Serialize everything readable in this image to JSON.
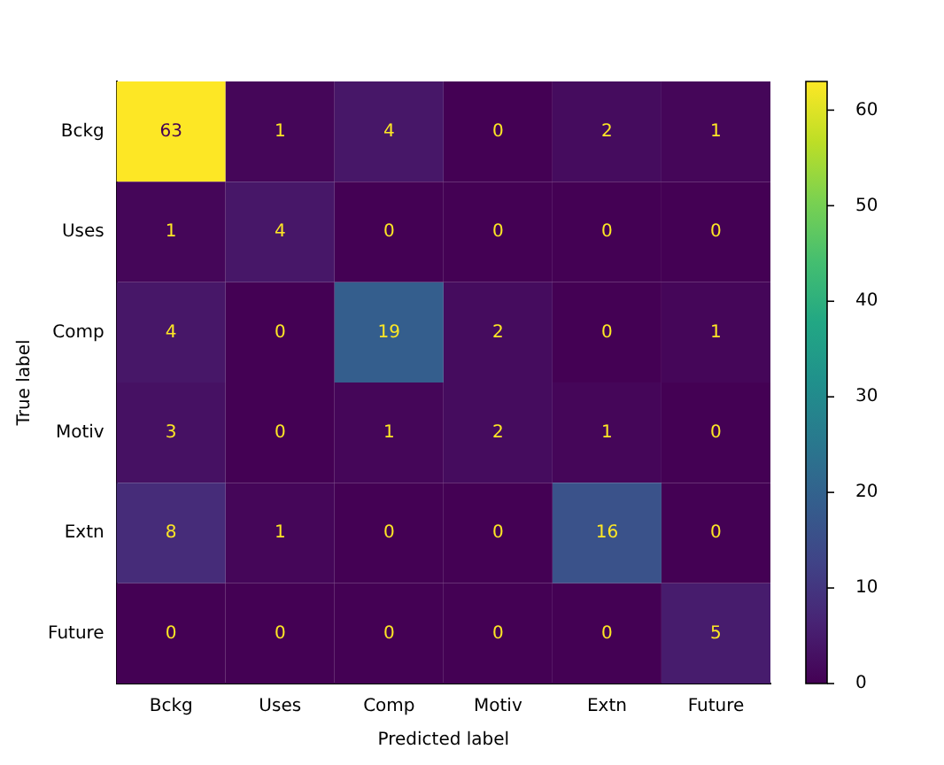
{
  "chart_data": {
    "type": "heatmap",
    "xlabel": "Predicted label",
    "ylabel": "True label",
    "categories": [
      "Bckg",
      "Uses",
      "Comp",
      "Motiv",
      "Extn",
      "Future"
    ],
    "y_categories": [
      "Bckg",
      "Uses",
      "Comp",
      "Motiv",
      "Extn",
      "Future"
    ],
    "cells": [
      [
        63,
        1,
        4,
        0,
        2,
        1
      ],
      [
        1,
        4,
        0,
        0,
        0,
        0
      ],
      [
        4,
        0,
        19,
        2,
        0,
        1
      ],
      [
        3,
        0,
        1,
        2,
        1,
        0
      ],
      [
        8,
        1,
        0,
        0,
        16,
        0
      ],
      [
        0,
        0,
        0,
        0,
        0,
        5
      ]
    ],
    "clim": [
      0,
      63
    ],
    "cticks": [
      0,
      10,
      20,
      30,
      40,
      50,
      60
    ],
    "data_labels": true,
    "grid": false,
    "legend": false
  }
}
